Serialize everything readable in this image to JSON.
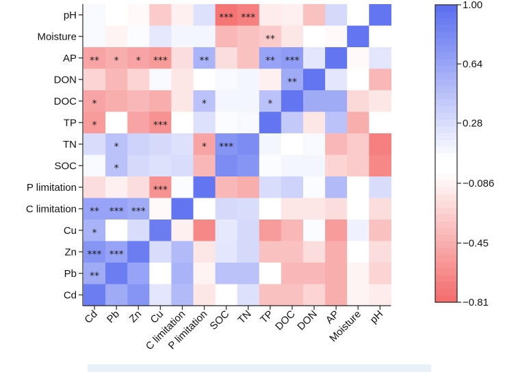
{
  "chart_data": {
    "type": "heatmap",
    "rows": [
      "pH",
      "Moisture",
      "AP",
      "DON",
      "DOC",
      "TP",
      "TN",
      "SOC",
      "P limitation",
      "C limitation",
      "Cu",
      "Zn",
      "Pb",
      "Cd"
    ],
    "columns": [
      "Cd",
      "Pb",
      "Zn",
      "Cu",
      "C limitation",
      "P limitation",
      "SOC",
      "TN",
      "TP",
      "DOC",
      "DON",
      "AP",
      "Moisture",
      "pH"
    ],
    "values": [
      [
        0.1,
        -0.02,
        -0.05,
        -0.3,
        -0.1,
        0.25,
        -0.75,
        -0.7,
        -0.12,
        -0.1,
        -0.35,
        0.3,
        0.05,
        0.95
      ],
      [
        0.1,
        -0.08,
        0.08,
        0.2,
        0.12,
        0.12,
        -0.4,
        -0.35,
        -0.3,
        -0.15,
        0.05,
        -0.05,
        0.95,
        0.05
      ],
      [
        -0.5,
        -0.45,
        -0.5,
        -0.55,
        -0.2,
        0.55,
        -0.2,
        -0.35,
        0.65,
        0.7,
        0.22,
        0.95,
        -0.05,
        0.22
      ],
      [
        -0.25,
        -0.4,
        -0.25,
        0.1,
        -0.15,
        0.05,
        0.1,
        0.12,
        -0.1,
        0.6,
        0.95,
        0.22,
        0.05,
        -0.4
      ],
      [
        -0.5,
        -0.45,
        -0.4,
        -0.45,
        -0.15,
        0.45,
        0.12,
        0.12,
        0.45,
        0.95,
        0.6,
        0.6,
        -0.22,
        -0.15
      ],
      [
        -0.55,
        0.05,
        -0.5,
        -0.6,
        0.05,
        0.25,
        0.08,
        0.1,
        0.95,
        0.4,
        -0.15,
        0.45,
        -0.45,
        0.05
      ],
      [
        0.28,
        0.45,
        0.35,
        0.3,
        0.25,
        -0.5,
        0.75,
        0.8,
        0.12,
        0.05,
        0.1,
        -0.4,
        -0.3,
        -0.7
      ],
      [
        0.1,
        0.45,
        0.3,
        0.25,
        0.28,
        -0.4,
        0.8,
        0.75,
        0.08,
        0.12,
        0.12,
        -0.25,
        -0.3,
        -0.65
      ],
      [
        -0.2,
        -0.1,
        -0.2,
        -0.6,
        0.08,
        0.95,
        -0.4,
        -0.45,
        0.28,
        0.35,
        0.08,
        0.5,
        0.05,
        0.28
      ],
      [
        0.65,
        0.65,
        0.6,
        -0.05,
        0.95,
        0.05,
        0.3,
        0.28,
        0.05,
        -0.15,
        -0.15,
        -0.2,
        0.05,
        -0.2
      ],
      [
        0.55,
        0.05,
        0.28,
        0.9,
        -0.1,
        -0.65,
        0.2,
        0.3,
        -0.55,
        -0.4,
        0.08,
        -0.55,
        0.15,
        -0.35
      ],
      [
        0.75,
        0.65,
        0.9,
        0.28,
        0.5,
        -0.15,
        0.22,
        0.3,
        -0.35,
        -0.35,
        -0.2,
        -0.45,
        -0.02,
        -0.2
      ],
      [
        0.6,
        0.9,
        0.65,
        0.05,
        0.55,
        -0.08,
        0.45,
        0.45,
        0.05,
        -0.4,
        -0.4,
        -0.45,
        -0.08,
        -0.25
      ],
      [
        0.9,
        0.6,
        0.75,
        0.22,
        0.5,
        -0.15,
        0.05,
        0.25,
        -0.35,
        -0.35,
        -0.25,
        -0.45,
        -0.08,
        -0.12
      ]
    ],
    "significance": [
      [
        "",
        "",
        "",
        "",
        "",
        "",
        "***",
        "***",
        "",
        "",
        "",
        "",
        "",
        ""
      ],
      [
        "",
        "",
        "",
        "",
        "",
        "",
        "",
        "",
        "**",
        "",
        "",
        "",
        "",
        ""
      ],
      [
        "**",
        "*",
        "*",
        "***",
        "",
        "**",
        "",
        "",
        "**",
        "***",
        "",
        "",
        "",
        ""
      ],
      [
        "",
        "",
        "",
        "",
        "",
        "",
        "",
        "",
        "",
        "**",
        "",
        "",
        "",
        ""
      ],
      [
        "*",
        "",
        "",
        "",
        "",
        "*",
        "",
        "",
        "*",
        "",
        "",
        "",
        "",
        ""
      ],
      [
        "*",
        "",
        "",
        "***",
        "",
        "",
        "",
        "",
        "",
        "",
        "",
        "",
        "",
        ""
      ],
      [
        "",
        "*",
        "",
        "",
        "",
        "*",
        "***",
        "",
        "",
        "",
        "",
        "",
        "",
        ""
      ],
      [
        "",
        "*",
        "",
        "",
        "",
        "",
        "",
        "",
        "",
        "",
        "",
        "",
        "",
        ""
      ],
      [
        "",
        "",
        "",
        "***",
        "",
        "",
        "",
        "",
        "",
        "",
        "",
        "",
        "",
        ""
      ],
      [
        "**",
        "***",
        "***",
        "",
        "",
        "",
        "",
        "",
        "",
        "",
        "",
        "",
        "",
        ""
      ],
      [
        "*",
        "",
        "",
        "",
        "",
        "",
        "",
        "",
        "",
        "",
        "",
        "",
        "",
        ""
      ],
      [
        "***",
        "***",
        "",
        "",
        "",
        "",
        "",
        "",
        "",
        "",
        "",
        "",
        "",
        ""
      ],
      [
        "**",
        "",
        "",
        "",
        "",
        "",
        "",
        "",
        "",
        "",
        "",
        "",
        "",
        ""
      ],
      [
        "",
        "",
        "",
        "",
        "",
        "",
        "",
        "",
        "",
        "",
        "",
        "",
        "",
        ""
      ]
    ],
    "colorbar": {
      "min": -0.81,
      "max": 1.0,
      "ticks": [
        "1.00",
        "0.64",
        "0.28",
        "−0.086",
        "−0.45",
        "−0.81"
      ],
      "tick_values": [
        1.0,
        0.64,
        0.28,
        -0.086,
        -0.45,
        -0.81
      ],
      "low_color": "#f46a6a",
      "mid_color": "#ffffff",
      "high_color": "#5a6df0"
    }
  }
}
